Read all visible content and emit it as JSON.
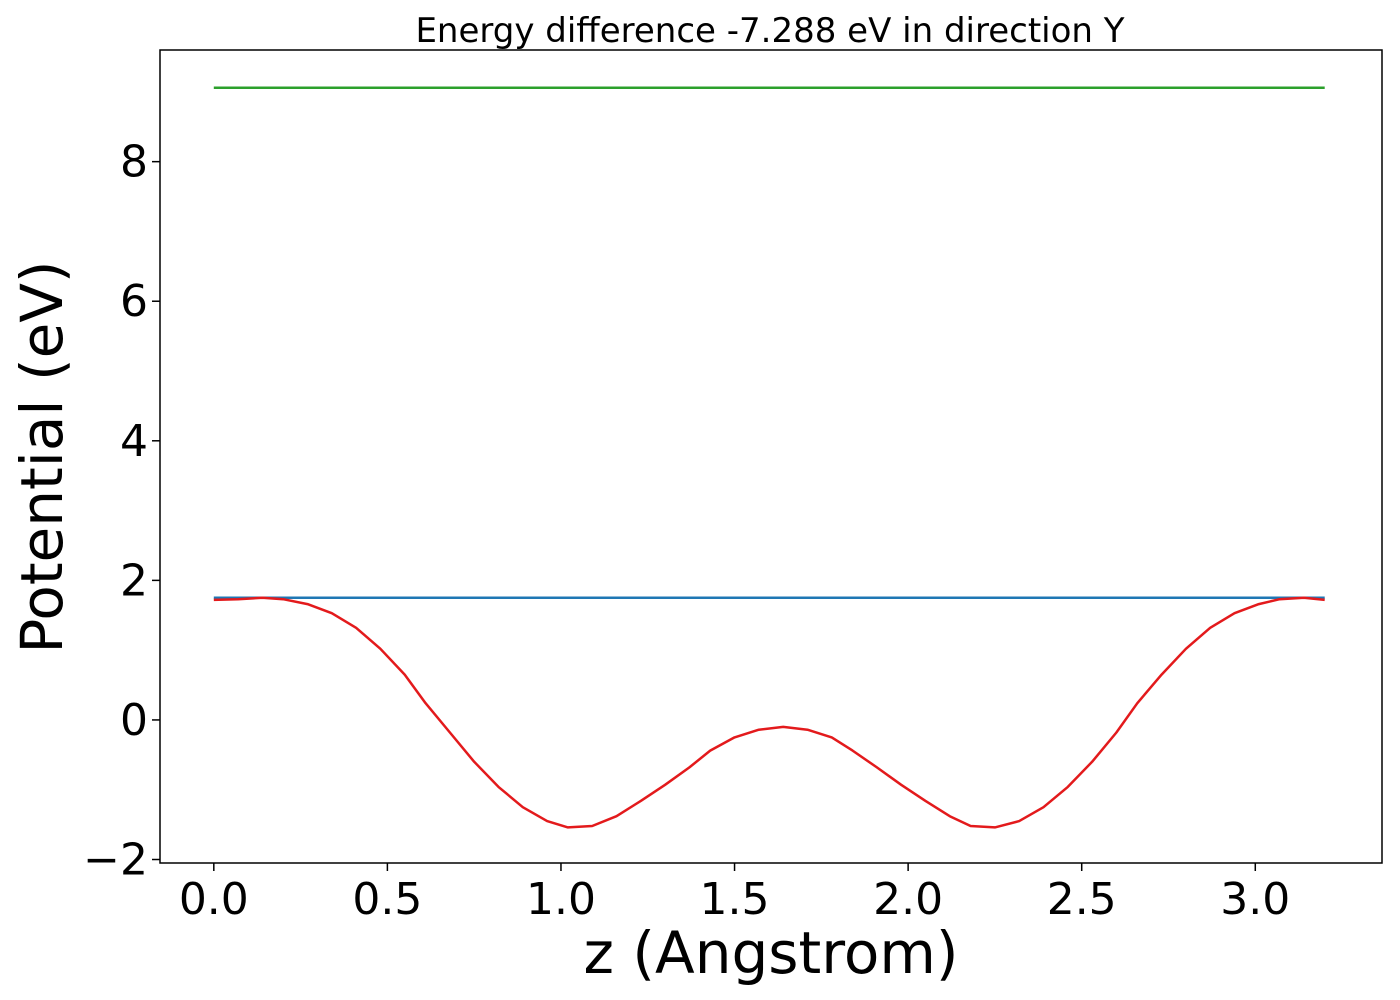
{
  "chart_data": {
    "type": "line",
    "title": "Energy difference -7.288 eV in direction Y",
    "xlabel": "z (Angstrom)",
    "ylabel": "Potential (eV)",
    "xlim": [
      -0.155,
      3.365
    ],
    "ylim": [
      -2.05,
      9.6
    ],
    "xticks": [
      0.0,
      0.5,
      1.0,
      1.5,
      2.0,
      2.5,
      3.0
    ],
    "xtick_labels": [
      "0.0",
      "0.5",
      "1.0",
      "1.5",
      "2.0",
      "2.5",
      "3.0"
    ],
    "yticks": [
      -2,
      0,
      2,
      4,
      6,
      8
    ],
    "ytick_labels": [
      "−2",
      "0",
      "2",
      "4",
      "6",
      "8"
    ],
    "grid": false,
    "series": [
      {
        "color": "#2ca02c",
        "x": [
          0.0,
          3.2
        ],
        "y": [
          9.06,
          9.06
        ]
      },
      {
        "color": "#1f77b4",
        "x": [
          0.0,
          3.2
        ],
        "y": [
          1.75,
          1.75
        ]
      },
      {
        "color": "#e31a1c",
        "x": [
          0.0,
          0.07,
          0.14,
          0.2,
          0.27,
          0.34,
          0.41,
          0.48,
          0.55,
          0.61,
          0.68,
          0.75,
          0.82,
          0.89,
          0.96,
          1.02,
          1.09,
          1.16,
          1.23,
          1.3,
          1.37,
          1.43,
          1.5,
          1.57,
          1.64,
          1.71,
          1.78,
          1.84,
          1.91,
          1.98,
          2.05,
          2.12,
          2.18,
          2.25,
          2.32,
          2.39,
          2.46,
          2.53,
          2.6,
          2.66,
          2.73,
          2.8,
          2.87,
          2.94,
          3.01,
          3.07,
          3.14,
          3.2
        ],
        "y": [
          1.72,
          1.73,
          1.75,
          1.73,
          1.66,
          1.53,
          1.32,
          1.02,
          0.65,
          0.24,
          -0.18,
          -0.6,
          -0.96,
          -1.25,
          -1.45,
          -1.54,
          -1.52,
          -1.38,
          -1.16,
          -0.93,
          -0.68,
          -0.44,
          -0.25,
          -0.14,
          -0.1,
          -0.14,
          -0.25,
          -0.44,
          -0.68,
          -0.93,
          -1.16,
          -1.38,
          -1.52,
          -1.54,
          -1.45,
          -1.25,
          -0.96,
          -0.6,
          -0.18,
          0.24,
          0.65,
          1.02,
          1.32,
          1.53,
          1.66,
          1.73,
          1.75,
          1.72
        ]
      }
    ]
  }
}
